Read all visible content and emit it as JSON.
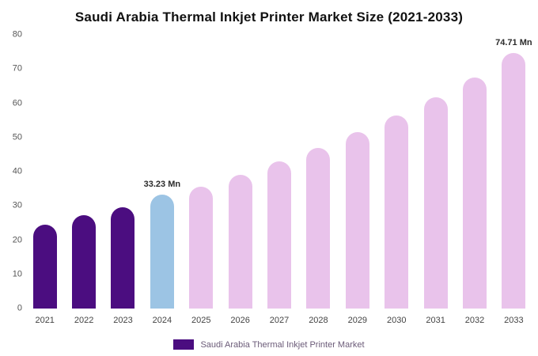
{
  "title": "Saudi Arabia Thermal Inkjet Printer Market Size (2021-2033)",
  "legend": {
    "label": "Saudi Arabia Thermal Inkjet Printer Market",
    "swatch_color": "#4b0d80"
  },
  "colors": {
    "historical": "#4b0d80",
    "highlight": "#9cc4e4",
    "forecast": "#e9c3eb"
  },
  "chart_data": {
    "type": "bar",
    "title": "Saudi Arabia Thermal Inkjet Printer Market Size (2021-2033)",
    "xlabel": "",
    "ylabel": "",
    "ylim": [
      0,
      80
    ],
    "yticks": [
      0,
      10,
      20,
      30,
      40,
      50,
      60,
      70,
      80
    ],
    "grid": false,
    "legend_position": "bottom",
    "categories": [
      "2021",
      "2022",
      "2023",
      "2024",
      "2025",
      "2026",
      "2027",
      "2028",
      "2029",
      "2030",
      "2031",
      "2032",
      "2033"
    ],
    "values": [
      24.5,
      27.2,
      29.7,
      33.23,
      35.6,
      39.0,
      42.9,
      46.9,
      51.5,
      56.4,
      61.8,
      67.6,
      74.71
    ],
    "bar_colors": [
      "#4b0d80",
      "#4b0d80",
      "#4b0d80",
      "#9cc4e4",
      "#e9c3eb",
      "#e9c3eb",
      "#e9c3eb",
      "#e9c3eb",
      "#e9c3eb",
      "#e9c3eb",
      "#e9c3eb",
      "#e9c3eb",
      "#e9c3eb"
    ],
    "annotations": [
      {
        "category": "2024",
        "text": "33.23 Mn"
      },
      {
        "category": "2033",
        "text": "74.71 Mn"
      }
    ]
  }
}
